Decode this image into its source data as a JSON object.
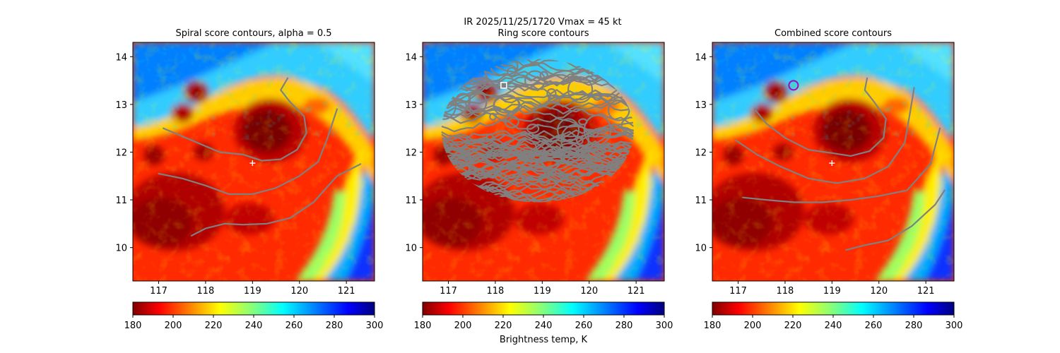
{
  "figure": {
    "suptitle": "IR  2025/11/25/1720    Vmax = 45 kt",
    "colorbar_label": "Brightness temp, K",
    "colormap": "jet"
  },
  "chart_data": [
    {
      "type": "heatmap",
      "title": "Spiral score contours, alpha =  0.5",
      "xlim": [
        116.45,
        121.6
      ],
      "ylim": [
        9.3,
        14.3
      ],
      "xticks": [
        117,
        118,
        119,
        120,
        121
      ],
      "yticks": [
        10,
        11,
        12,
        13,
        14
      ],
      "colorbar": {
        "range": [
          180,
          300
        ],
        "ticks": [
          180,
          200,
          220,
          240,
          260,
          280,
          300
        ]
      },
      "center_marker": {
        "lon": 119.0,
        "lat": 11.77,
        "symbol": "+",
        "color": "#ffffff"
      },
      "contours": [
        {
          "color": "#808080",
          "points": [
            [
              117.1,
              12.5
            ],
            [
              117.7,
              12.25
            ],
            [
              118.3,
              12.0
            ],
            [
              118.8,
              11.95
            ],
            [
              119.2,
              11.82
            ],
            [
              119.6,
              11.85
            ],
            [
              119.95,
              12.05
            ],
            [
              120.15,
              12.4
            ],
            [
              120.1,
              12.75
            ],
            [
              119.8,
              13.05
            ],
            [
              119.6,
              13.3
            ],
            [
              119.75,
              13.55
            ]
          ]
        },
        {
          "color": "#808080",
          "points": [
            [
              117.0,
              11.55
            ],
            [
              117.5,
              11.45
            ],
            [
              118.0,
              11.3
            ],
            [
              118.5,
              11.12
            ],
            [
              119.0,
              11.12
            ],
            [
              119.5,
              11.25
            ],
            [
              120.0,
              11.5
            ],
            [
              120.4,
              11.8
            ],
            [
              120.6,
              12.3
            ],
            [
              120.8,
              12.9
            ]
          ]
        },
        {
          "color": "#808080",
          "points": [
            [
              117.7,
              10.25
            ],
            [
              118.0,
              10.4
            ],
            [
              118.4,
              10.5
            ],
            [
              118.8,
              10.48
            ],
            [
              119.3,
              10.5
            ],
            [
              119.8,
              10.62
            ],
            [
              120.3,
              10.95
            ],
            [
              120.8,
              11.5
            ],
            [
              121.3,
              11.75
            ]
          ]
        }
      ]
    },
    {
      "type": "heatmap",
      "title": "Ring score contours",
      "xlim": [
        116.45,
        121.6
      ],
      "ylim": [
        9.3,
        14.3
      ],
      "xticks": [
        117,
        118,
        119,
        120,
        121
      ],
      "yticks": [
        10,
        11,
        12,
        13,
        14
      ],
      "colorbar": {
        "range": [
          180,
          300
        ],
        "ticks": [
          180,
          200,
          220,
          240,
          260,
          280,
          300
        ]
      },
      "center_marker": {
        "lon": 118.18,
        "lat": 13.4,
        "symbol": "square",
        "color": "#ffffff"
      },
      "ring_region": {
        "center_lon": 118.9,
        "center_lat": 12.45,
        "radius_lon": 2.05,
        "radius_lat": 1.5
      }
    },
    {
      "type": "heatmap",
      "title": "Combined score contours",
      "xlim": [
        116.45,
        121.6
      ],
      "ylim": [
        9.3,
        14.3
      ],
      "xticks": [
        117,
        118,
        119,
        120,
        121
      ],
      "yticks": [
        10,
        11,
        12,
        13,
        14
      ],
      "colorbar": {
        "range": [
          180,
          300
        ],
        "ticks": [
          180,
          200,
          220,
          240,
          260,
          280,
          300
        ]
      },
      "center_marker": {
        "lon": 119.0,
        "lat": 11.77,
        "symbol": "+",
        "color": "#ffffff"
      },
      "best_center": {
        "lon": 118.18,
        "lat": 13.4,
        "circle_color": "#9a0fb5",
        "fill_color": "#4dd0c8"
      },
      "contours": [
        {
          "color": "#808080",
          "points": [
            [
              117.35,
              12.9
            ],
            [
              117.6,
              12.6
            ],
            [
              118.0,
              12.3
            ],
            [
              118.5,
              12.05
            ],
            [
              119.0,
              11.98
            ],
            [
              119.4,
              11.92
            ],
            [
              119.8,
              12.02
            ],
            [
              120.1,
              12.3
            ],
            [
              120.15,
              12.7
            ],
            [
              119.9,
              13.05
            ],
            [
              119.7,
              13.3
            ],
            [
              119.75,
              13.55
            ]
          ]
        },
        {
          "color": "#808080",
          "points": [
            [
              116.95,
              12.25
            ],
            [
              117.4,
              11.95
            ],
            [
              117.9,
              11.7
            ],
            [
              118.5,
              11.45
            ],
            [
              119.1,
              11.35
            ],
            [
              119.7,
              11.45
            ],
            [
              120.2,
              11.7
            ],
            [
              120.55,
              12.2
            ],
            [
              120.65,
              12.75
            ],
            [
              120.75,
              13.35
            ]
          ]
        },
        {
          "color": "#808080",
          "points": [
            [
              117.1,
              11.05
            ],
            [
              117.6,
              11.0
            ],
            [
              118.2,
              10.95
            ],
            [
              118.8,
              10.95
            ],
            [
              119.4,
              11.0
            ],
            [
              120.0,
              11.08
            ],
            [
              120.6,
              11.2
            ],
            [
              121.1,
              11.75
            ],
            [
              121.3,
              12.5
            ]
          ]
        },
        {
          "color": "#808080",
          "points": [
            [
              119.3,
              9.95
            ],
            [
              119.7,
              10.05
            ],
            [
              120.2,
              10.15
            ],
            [
              120.7,
              10.45
            ],
            [
              121.2,
              10.9
            ],
            [
              121.4,
              11.2
            ]
          ]
        }
      ]
    }
  ]
}
